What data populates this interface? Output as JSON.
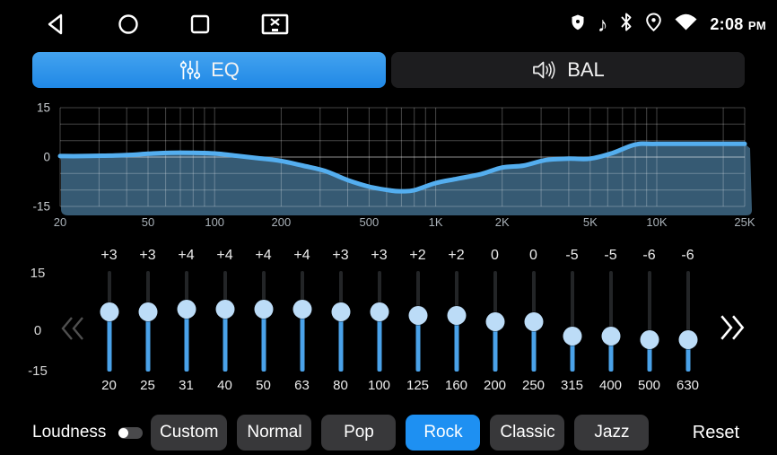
{
  "status_bar": {
    "time": "2:08",
    "meridiem": "PM",
    "nav_icons": [
      "back-triangle-icon",
      "home-circle-icon",
      "recents-square-icon",
      "screenshot-icon"
    ],
    "status_icons": [
      "shield-icon",
      "music-note-icon",
      "bluetooth-icon",
      "location-icon",
      "wifi-icon"
    ],
    "music_note_glyph": "♪"
  },
  "tabs": [
    {
      "label": "EQ",
      "icon": "equalizer-sliders-icon",
      "active": true
    },
    {
      "label": "BAL",
      "icon": "speaker-volume-icon",
      "active": false
    }
  ],
  "chart_data": {
    "type": "area",
    "x_scale": "log",
    "x_range": [
      20,
      25000
    ],
    "ylim": [
      -15,
      15
    ],
    "y_gridlines": [
      15,
      10,
      5,
      0,
      -5,
      -10,
      -15
    ],
    "y_ticks": [
      {
        "v": 15,
        "label": "15"
      },
      {
        "v": 0,
        "label": "0"
      },
      {
        "v": -15,
        "label": "-15"
      }
    ],
    "x_ticks": [
      {
        "f": 20,
        "label": "20"
      },
      {
        "f": 50,
        "label": "50"
      },
      {
        "f": 100,
        "label": "100"
      },
      {
        "f": 200,
        "label": "200"
      },
      {
        "f": 500,
        "label": "500"
      },
      {
        "f": 1000,
        "label": "1K"
      },
      {
        "f": 2000,
        "label": "2K"
      },
      {
        "f": 5000,
        "label": "5K"
      },
      {
        "f": 10000,
        "label": "10K"
      },
      {
        "f": 25000,
        "label": "25K"
      }
    ],
    "x_gridlines_minor": [
      20,
      30,
      40,
      50,
      60,
      70,
      80,
      90,
      100,
      200,
      300,
      400,
      500,
      600,
      700,
      800,
      900,
      1000,
      2000,
      3000,
      4000,
      5000,
      6000,
      7000,
      8000,
      9000,
      10000,
      20000,
      25000
    ],
    "curve": [
      [
        20,
        0.3
      ],
      [
        25,
        0.3
      ],
      [
        31,
        0.4
      ],
      [
        40,
        0.6
      ],
      [
        50,
        1.0
      ],
      [
        63,
        1.3
      ],
      [
        80,
        1.3
      ],
      [
        100,
        1.1
      ],
      [
        125,
        0.4
      ],
      [
        160,
        -0.4
      ],
      [
        200,
        -1.2
      ],
      [
        250,
        -2.6
      ],
      [
        315,
        -4.2
      ],
      [
        400,
        -7.0
      ],
      [
        500,
        -9.0
      ],
      [
        630,
        -10.2
      ],
      [
        700,
        -10.4
      ],
      [
        800,
        -10.1
      ],
      [
        1000,
        -7.9
      ],
      [
        1250,
        -6.6
      ],
      [
        1600,
        -5.2
      ],
      [
        2000,
        -3.2
      ],
      [
        2500,
        -2.6
      ],
      [
        3150,
        -0.9
      ],
      [
        4000,
        -0.5
      ],
      [
        5000,
        -0.5
      ],
      [
        6300,
        1.2
      ],
      [
        8000,
        3.8
      ],
      [
        10000,
        4.0
      ],
      [
        25000,
        4.0
      ]
    ],
    "grid": true,
    "legend": "none",
    "line_color": "#54aeef",
    "fill_color": "#365a73"
  },
  "sliders": {
    "min": -15,
    "max": 15,
    "y_scale_labels": [
      "15",
      "0",
      "-15"
    ],
    "bands": [
      {
        "freq": "20",
        "value": 3,
        "label": "+3"
      },
      {
        "freq": "25",
        "value": 3,
        "label": "+3"
      },
      {
        "freq": "31",
        "value": 4,
        "label": "+4"
      },
      {
        "freq": "40",
        "value": 4,
        "label": "+4"
      },
      {
        "freq": "50",
        "value": 4,
        "label": "+4"
      },
      {
        "freq": "63",
        "value": 4,
        "label": "+4"
      },
      {
        "freq": "80",
        "value": 3,
        "label": "+3"
      },
      {
        "freq": "100",
        "value": 3,
        "label": "+3"
      },
      {
        "freq": "125",
        "value": 2,
        "label": "+2"
      },
      {
        "freq": "160",
        "value": 2,
        "label": "+2"
      },
      {
        "freq": "200",
        "value": 0,
        "label": "0"
      },
      {
        "freq": "250",
        "value": 0,
        "label": "0"
      },
      {
        "freq": "315",
        "value": -5,
        "label": "-5"
      },
      {
        "freq": "400",
        "value": -5,
        "label": "-5"
      },
      {
        "freq": "500",
        "value": -6,
        "label": "-6"
      },
      {
        "freq": "630",
        "value": -6,
        "label": "-6"
      }
    ],
    "pager": {
      "prev_icon": "double-chevron-left-icon",
      "prev_enabled": false,
      "next_icon": "double-chevron-right-icon",
      "next_enabled": true
    }
  },
  "bottom_bar": {
    "loudness": {
      "label": "Loudness",
      "enabled": false
    },
    "presets": [
      {
        "label": "Custom",
        "active": false
      },
      {
        "label": "Normal",
        "active": false
      },
      {
        "label": "Pop",
        "active": false
      },
      {
        "label": "Rock",
        "active": true
      },
      {
        "label": "Classic",
        "active": false
      },
      {
        "label": "Jazz",
        "active": false
      }
    ],
    "reset_label": "Reset"
  },
  "colors": {
    "accent_blue": "#2196f3",
    "tab_gradient_top": "#43a3ef",
    "tab_gradient_bottom": "#2088e6",
    "slider_fill_blue": "#4aa2e9",
    "slider_thumb": "#bcdcf7",
    "curve_line": "#54aeef",
    "curve_fill": "#365a73"
  }
}
